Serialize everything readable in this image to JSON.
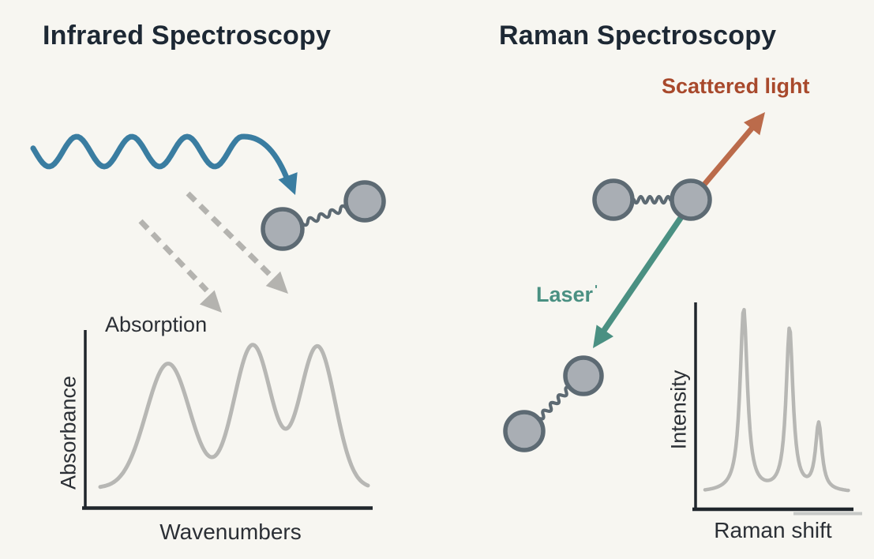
{
  "ir": {
    "title": "Infrared Spectroscopy"
  },
  "raman": {
    "title": "Raman Spectroscopy",
    "scattered_light_label": "Scattered light",
    "laser_label": "Laser",
    "laser_mark": "ʹ"
  },
  "colors": {
    "background": "#f7f6f1",
    "title_text": "#1d2834",
    "label_text": "#2b2f35",
    "ir_wave_blue": "#3a7da1",
    "dashed_gray": "#b4b3af",
    "molecule_fill": "#a9aeb4",
    "molecule_stroke": "#5d6a73",
    "axis": "#20262c",
    "spectrum_curve": "#b7b7b4",
    "scattered_light_text": "#a8492c",
    "scattered_arrow": "#bb6b4b",
    "laser_green": "#4a9082"
  },
  "chart_data": [
    {
      "id": "ir_spectrum",
      "type": "line",
      "title": "Absorption",
      "xlabel": "Wavenumbers",
      "ylabel": "Absorbance",
      "x_range": [
        0,
        1
      ],
      "y_range": [
        0,
        1.05
      ],
      "grid": false,
      "legend": false,
      "line_color": "#b7b7b4",
      "peak_shape": "gaussian",
      "peaks": [
        {
          "center": 0.253,
          "height": 0.87,
          "width": 0.082
        },
        {
          "center": 0.568,
          "height": 1.0,
          "width": 0.07
        },
        {
          "center": 0.809,
          "height": 0.99,
          "width": 0.066
        }
      ]
    },
    {
      "id": "raman_spectrum",
      "type": "line",
      "title": "",
      "xlabel": "Raman shift",
      "ylabel": "Intensity",
      "x_range": [
        0,
        1
      ],
      "y_range": [
        0,
        1.05
      ],
      "grid": false,
      "legend": false,
      "line_color": "#b7b7b4",
      "peak_shape": "lorentzian",
      "peaks": [
        {
          "center": 0.269,
          "height": 1.0,
          "width": 0.031
        },
        {
          "center": 0.588,
          "height": 0.89,
          "width": 0.029
        },
        {
          "center": 0.791,
          "height": 0.365,
          "width": 0.027
        }
      ]
    }
  ]
}
